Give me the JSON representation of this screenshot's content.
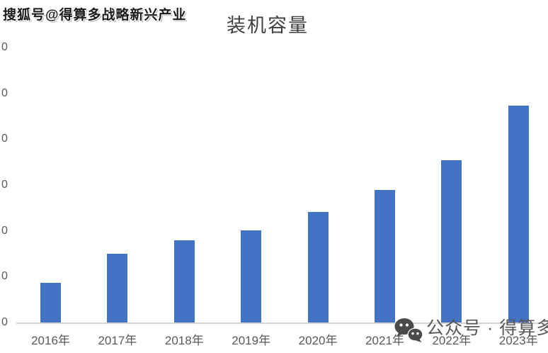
{
  "watermarks": {
    "top_left": "搜狐号@得算多战略新兴产业",
    "bottom_right_text": "公众号 · 得算多",
    "bottom_right_icon": "wechat-icon"
  },
  "chart_data": {
    "type": "bar",
    "title": "装机容量",
    "categories": [
      "2016年",
      "2017年",
      "2018年",
      "2019年",
      "2020年",
      "2021年",
      "2022年",
      "2023年"
    ],
    "values": [
      87,
      150,
      179,
      201,
      241,
      289,
      354,
      473
    ],
    "xlabel": "",
    "ylabel": "",
    "ylim": [
      0,
      600
    ],
    "ytick_step": 100,
    "ytick_labels_visible": [
      "0",
      "0",
      "0",
      "0",
      "0",
      "0",
      "0"
    ],
    "ytick_note": "y-axis tick labels are cropped by the image's left edge; only the trailing 0 digit of each label is visible",
    "grid": false,
    "legend_position": "none",
    "bar_color": "#4472C4",
    "axis_line_color": "#D6D6D6",
    "label_color": "#595959",
    "title_color": "#404040"
  }
}
